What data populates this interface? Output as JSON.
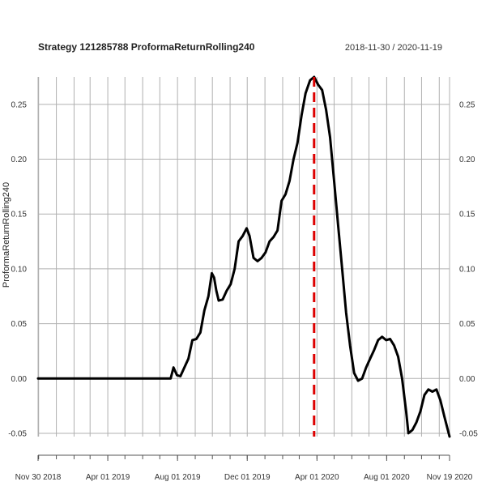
{
  "chart_data": {
    "type": "line",
    "title": "Strategy 121285788 ProformaReturnRolling240",
    "date_range": "2018-11-30 / 2020-11-19",
    "ylabel": "ProformaReturnRolling240",
    "xlabel": "",
    "ylim": [
      -0.053,
      0.275
    ],
    "xlim": [
      "2018-11-30",
      "2020-11-19"
    ],
    "grid": true,
    "y_ticks": [
      -0.05,
      0.0,
      0.05,
      0.1,
      0.15,
      0.2,
      0.25
    ],
    "y_tick_labels": [
      "-0.05",
      "0.00",
      "0.05",
      "0.10",
      "0.15",
      "0.20",
      "0.25"
    ],
    "x_ticks": [
      "2018-11-30",
      "2019-04-01",
      "2019-08-01",
      "2019-12-01",
      "2020-04-01",
      "2020-08-01",
      "2020-11-19"
    ],
    "x_tick_labels": [
      "Nov 30 2018",
      "Apr 01 2019",
      "Aug 01 2019",
      "Dec 01 2019",
      "Apr 01 2020",
      "Aug 01 2020",
      "Nov 19 2020"
    ],
    "vline": {
      "x": "2020-03-27",
      "color": "#dd0000",
      "style": "dashed"
    },
    "series": [
      {
        "color": "#000000",
        "points": [
          [
            "2018-11-30",
            0.0
          ],
          [
            "2019-07-20",
            0.0
          ],
          [
            "2019-07-25",
            0.01
          ],
          [
            "2019-07-31",
            0.003
          ],
          [
            "2019-08-06",
            0.002
          ],
          [
            "2019-08-13",
            0.01
          ],
          [
            "2019-08-20",
            0.018
          ],
          [
            "2019-08-27",
            0.035
          ],
          [
            "2019-09-03",
            0.036
          ],
          [
            "2019-09-10",
            0.042
          ],
          [
            "2019-09-17",
            0.062
          ],
          [
            "2019-09-24",
            0.075
          ],
          [
            "2019-09-30",
            0.096
          ],
          [
            "2019-10-04",
            0.092
          ],
          [
            "2019-10-08",
            0.08
          ],
          [
            "2019-10-12",
            0.071
          ],
          [
            "2019-10-19",
            0.072
          ],
          [
            "2019-10-26",
            0.08
          ],
          [
            "2019-11-02",
            0.086
          ],
          [
            "2019-11-09",
            0.1
          ],
          [
            "2019-11-16",
            0.125
          ],
          [
            "2019-11-23",
            0.13
          ],
          [
            "2019-11-30",
            0.137
          ],
          [
            "2019-12-05",
            0.13
          ],
          [
            "2019-12-12",
            0.11
          ],
          [
            "2019-12-19",
            0.107
          ],
          [
            "2019-12-26",
            0.11
          ],
          [
            "2020-01-02",
            0.115
          ],
          [
            "2020-01-09",
            0.125
          ],
          [
            "2020-01-16",
            0.129
          ],
          [
            "2020-01-23",
            0.135
          ],
          [
            "2020-01-30",
            0.162
          ],
          [
            "2020-02-06",
            0.168
          ],
          [
            "2020-02-13",
            0.18
          ],
          [
            "2020-02-20",
            0.2
          ],
          [
            "2020-02-27",
            0.215
          ],
          [
            "2020-03-05",
            0.24
          ],
          [
            "2020-03-12",
            0.26
          ],
          [
            "2020-03-20",
            0.272
          ],
          [
            "2020-03-27",
            0.275
          ],
          [
            "2020-04-03",
            0.268
          ],
          [
            "2020-04-10",
            0.263
          ],
          [
            "2020-04-17",
            0.245
          ],
          [
            "2020-04-24",
            0.22
          ],
          [
            "2020-05-01",
            0.18
          ],
          [
            "2020-05-08",
            0.14
          ],
          [
            "2020-05-15",
            0.1
          ],
          [
            "2020-05-22",
            0.06
          ],
          [
            "2020-05-29",
            0.03
          ],
          [
            "2020-06-05",
            0.005
          ],
          [
            "2020-06-12",
            -0.002
          ],
          [
            "2020-06-19",
            0.0
          ],
          [
            "2020-06-26",
            0.01
          ],
          [
            "2020-07-03",
            0.018
          ],
          [
            "2020-07-10",
            0.026
          ],
          [
            "2020-07-17",
            0.035
          ],
          [
            "2020-07-24",
            0.038
          ],
          [
            "2020-07-31",
            0.035
          ],
          [
            "2020-08-07",
            0.036
          ],
          [
            "2020-08-14",
            0.03
          ],
          [
            "2020-08-21",
            0.02
          ],
          [
            "2020-08-28",
            0.0
          ],
          [
            "2020-09-04",
            -0.03
          ],
          [
            "2020-09-08",
            -0.05
          ],
          [
            "2020-09-15",
            -0.047
          ],
          [
            "2020-09-22",
            -0.04
          ],
          [
            "2020-09-29",
            -0.03
          ],
          [
            "2020-10-06",
            -0.015
          ],
          [
            "2020-10-13",
            -0.01
          ],
          [
            "2020-10-20",
            -0.012
          ],
          [
            "2020-10-27",
            -0.01
          ],
          [
            "2020-11-03",
            -0.02
          ],
          [
            "2020-11-10",
            -0.035
          ],
          [
            "2020-11-19",
            -0.053
          ]
        ]
      }
    ]
  }
}
